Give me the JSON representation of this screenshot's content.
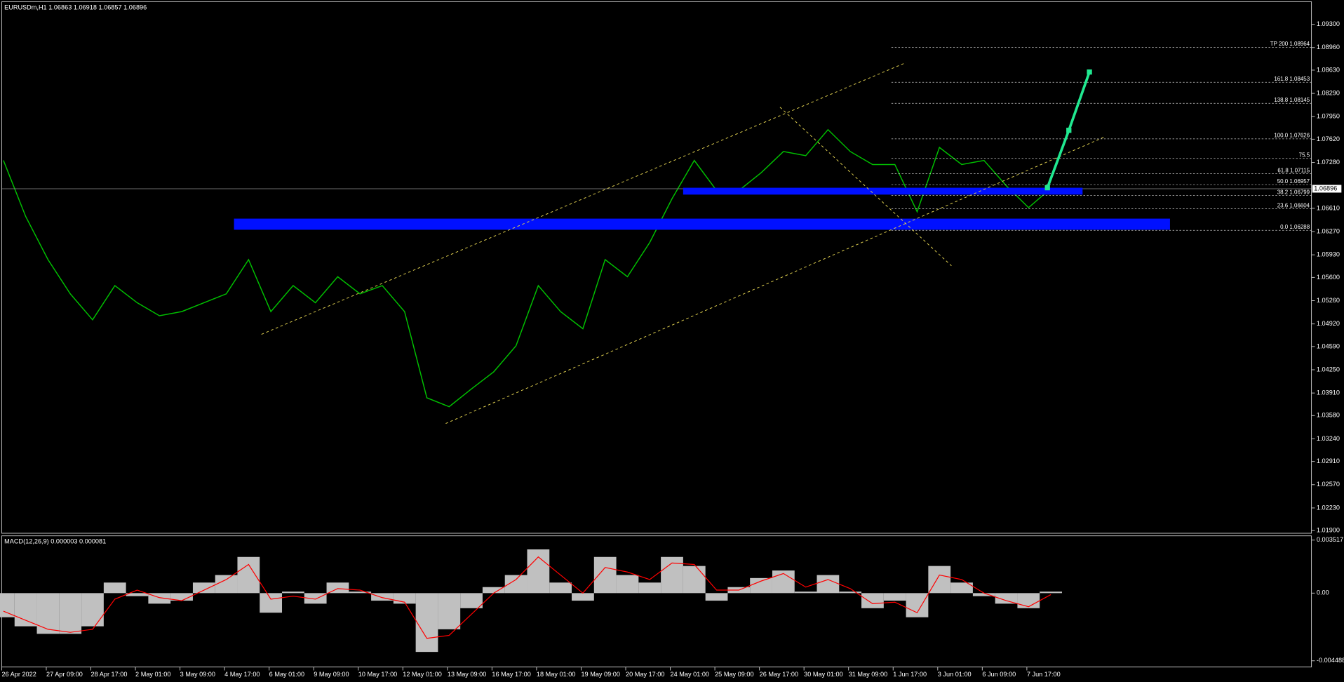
{
  "chart_data": [
    {
      "type": "line",
      "title": "EURUSDm,H1  1.06863 1.06918 1.06857 1.06896",
      "color": "#00c000",
      "categories": [
        "26 Apr 2022",
        null,
        "27 Apr 09:00",
        null,
        "28 Apr 17:00",
        null,
        "2 May 01:00",
        null,
        "3 May 09:00",
        null,
        "4 May 17:00",
        null,
        "6 May 01:00",
        null,
        "9 May 09:00",
        null,
        "10 May 17:00",
        null,
        "12 May 01:00",
        null,
        "13 May 09:00",
        null,
        "16 May 17:00",
        null,
        "18 May 01:00",
        null,
        "19 May 09:00",
        null,
        "20 May 17:00",
        null,
        "24 May 01:00",
        null,
        "25 May 09:00",
        null,
        "26 May 17:00",
        null,
        "30 May 01:00",
        null,
        "31 May 09:00",
        null,
        "1 Jun 17:00",
        null,
        "3 Jun 01:00",
        null,
        "6 Jun 09:00",
        null,
        "7 Jun 17:00",
        null
      ],
      "values": [
        1.0731,
        1.0649,
        1.0586,
        1.0536,
        1.0498,
        1.0548,
        1.0523,
        1.0504,
        1.051,
        1.0523,
        1.0536,
        1.0586,
        1.051,
        1.0548,
        1.0523,
        1.0561,
        1.0536,
        1.0548,
        1.051,
        1.0384,
        1.0371,
        1.0397,
        1.0422,
        1.046,
        1.0548,
        1.051,
        1.0485,
        1.0586,
        1.0561,
        1.0611,
        1.0675,
        1.0731,
        1.0687,
        1.0687,
        1.0713,
        1.0744,
        1.0738,
        1.0776,
        1.0744,
        1.0725,
        1.0725,
        1.0656,
        1.075,
        1.0725,
        1.0731,
        1.0694,
        1.0662,
        1.069
      ],
      "ylim": [
        1.0186,
        1.0963
      ],
      "yticks": [
        {
          "value": 1.093,
          "label": "1.09300"
        },
        {
          "value": 1.0896,
          "label": "1.08960"
        },
        {
          "value": 1.0863,
          "label": "1.08630"
        },
        {
          "value": 1.0829,
          "label": "1.08290"
        },
        {
          "value": 1.0795,
          "label": "1.07950"
        },
        {
          "value": 1.0762,
          "label": "1.07620"
        },
        {
          "value": 1.0728,
          "label": "1.07280"
        },
        {
          "value": 1.0661,
          "label": "1.06610"
        },
        {
          "value": 1.0627,
          "label": "1.06270"
        },
        {
          "value": 1.0593,
          "label": "1.05930"
        },
        {
          "value": 1.056,
          "label": "1.05600"
        },
        {
          "value": 1.0526,
          "label": "1.05260"
        },
        {
          "value": 1.0492,
          "label": "1.04920"
        },
        {
          "value": 1.0459,
          "label": "1.04590"
        },
        {
          "value": 1.0425,
          "label": "1.04250"
        },
        {
          "value": 1.0391,
          "label": "1.03910"
        },
        {
          "value": 1.0358,
          "label": "1.03580"
        },
        {
          "value": 1.0324,
          "label": "1.03240"
        },
        {
          "value": 1.0291,
          "label": "1.02910"
        },
        {
          "value": 1.0257,
          "label": "1.02570"
        },
        {
          "value": 1.0223,
          "label": "1.02230"
        },
        {
          "value": 1.019,
          "label": "1.01900"
        }
      ],
      "levels": [
        {
          "value": 1.08964,
          "label": "TP 200 1.08964"
        },
        {
          "value": 1.08453,
          "label": "161.8 1.08453"
        },
        {
          "value": 1.08145,
          "label": "138.8 1.08145"
        },
        {
          "value": 1.07626,
          "label": "100.0 1.07626"
        },
        {
          "value": 1.0734,
          "label": "75.5"
        },
        {
          "value": 1.07115,
          "label": "61.8 1.07115"
        },
        {
          "value": 1.06957,
          "label": "50.0 1.06957"
        },
        {
          "value": 1.06799,
          "label": "38.2 1.06799"
        },
        {
          "value": 1.06604,
          "label": "23.6 1.06604"
        },
        {
          "value": 1.06288,
          "label": "0.0 1.06288"
        }
      ],
      "current_price": 1.06896
    },
    {
      "type": "bar",
      "title": "MACD(12,26,9) 0.000003 0.000081",
      "color": "#c0c0c0",
      "signal_color": "#ff0000",
      "values": [
        -0.0016,
        -0.0022,
        -0.0027,
        -0.0027,
        -0.0022,
        0.0007,
        -0.0002,
        -0.0007,
        -0.0005,
        0.0007,
        0.0012,
        0.0024,
        -0.0013,
        0.0001,
        -0.0007,
        0.0007,
        0.0001,
        -0.0005,
        -0.0007,
        -0.0039,
        -0.0024,
        -0.001,
        0.0004,
        0.0012,
        0.0029,
        0.0007,
        -0.0005,
        0.0024,
        0.0012,
        0.0007,
        0.0024,
        0.0018,
        -0.0005,
        0.0004,
        0.001,
        0.0015,
        0.0001,
        0.0012,
        0.0001,
        -0.001,
        -0.0005,
        -0.0016,
        0.0018,
        0.0007,
        -0.0002,
        -0.0007,
        -0.001,
        0.0001
      ],
      "signal": [
        -0.0012,
        -0.0018,
        -0.0024,
        -0.0026,
        -0.0024,
        -0.0004,
        0.0002,
        -0.0003,
        -0.0005,
        0.0002,
        0.0009,
        0.0019,
        -0.0004,
        -0.0002,
        -0.0004,
        0.0003,
        0.0002,
        -0.0003,
        -0.0006,
        -0.003,
        -0.0028,
        -0.0014,
        0.0,
        0.0009,
        0.0024,
        0.0012,
        0.0,
        0.0017,
        0.0014,
        0.0009,
        0.002,
        0.0019,
        0.0002,
        0.0002,
        0.0008,
        0.0013,
        0.0004,
        0.0009,
        0.0003,
        -0.0007,
        -0.0006,
        -0.0013,
        0.0012,
        0.0009,
        0.0,
        -0.0005,
        -0.0009,
        -0.0001
      ],
      "ylim": [
        -0.0049,
        0.0038
      ],
      "yticks": [
        {
          "value": 0.003517,
          "label": "0.003517"
        },
        {
          "value": 0,
          "label": "0.00"
        },
        {
          "value": -0.004488,
          "label": "-0.004488"
        }
      ]
    }
  ]
}
